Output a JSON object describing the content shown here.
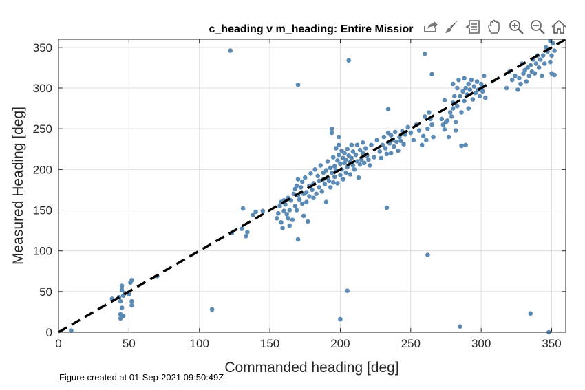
{
  "figure": {
    "footer": "Figure created at 01-Sep-2021 09:50:49Z"
  },
  "toolbar": {
    "icons": [
      "export-icon",
      "brush-icon",
      "data-tip-icon",
      "pan-icon",
      "zoom-in-icon",
      "zoom-out-icon",
      "home-icon"
    ]
  },
  "colors": {
    "points": "#5b8bb5",
    "reference_line": "#000000",
    "grid": "#dcdcdc"
  },
  "chart_data": {
    "type": "scatter",
    "title": "c_heading v m_heading: Entire Missior",
    "xlabel": "Commanded heading [deg]",
    "ylabel": "Measured Heading [deg]",
    "xlim": [
      0,
      360
    ],
    "ylim": [
      0,
      360
    ],
    "xticks": [
      0,
      50,
      100,
      150,
      200,
      250,
      300,
      350
    ],
    "yticks": [
      0,
      50,
      100,
      150,
      200,
      250,
      300,
      350
    ],
    "grid": true,
    "reference_line": {
      "style": "dashed",
      "x": [
        0,
        360
      ],
      "y": [
        0,
        360
      ]
    },
    "points": [
      [
        9,
        2
      ],
      [
        38,
        41
      ],
      [
        43,
        43
      ],
      [
        44,
        38
      ],
      [
        44,
        22
      ],
      [
        44,
        17
      ],
      [
        45,
        52
      ],
      [
        45,
        57
      ],
      [
        45,
        30
      ],
      [
        46,
        45
      ],
      [
        46,
        20
      ],
      [
        47,
        48
      ],
      [
        50,
        47
      ],
      [
        51,
        61
      ],
      [
        52,
        64
      ],
      [
        52,
        38
      ],
      [
        52,
        33
      ],
      [
        70,
        69
      ],
      [
        109,
        28
      ],
      [
        122,
        346
      ],
      [
        123,
        122
      ],
      [
        130,
        127
      ],
      [
        131,
        152
      ],
      [
        133,
        118
      ],
      [
        134,
        123
      ],
      [
        138,
        144
      ],
      [
        140,
        148
      ],
      [
        145,
        149
      ],
      [
        155,
        140
      ],
      [
        156,
        146
      ],
      [
        157,
        155
      ],
      [
        158,
        160
      ],
      [
        158,
        135
      ],
      [
        159,
        128
      ],
      [
        160,
        149
      ],
      [
        160,
        162
      ],
      [
        161,
        157
      ],
      [
        162,
        145
      ],
      [
        163,
        140
      ],
      [
        163,
        165
      ],
      [
        164,
        150
      ],
      [
        164,
        131
      ],
      [
        165,
        162
      ],
      [
        166,
        138
      ],
      [
        167,
        170
      ],
      [
        168,
        176
      ],
      [
        168,
        155
      ],
      [
        169,
        180
      ],
      [
        169,
        150
      ],
      [
        170,
        188
      ],
      [
        170,
        168
      ],
      [
        170,
        114
      ],
      [
        170,
        304
      ],
      [
        171,
        163
      ],
      [
        172,
        178
      ],
      [
        173,
        185
      ],
      [
        173,
        158
      ],
      [
        174,
        143
      ],
      [
        174,
        170
      ],
      [
        175,
        190
      ],
      [
        176,
        172
      ],
      [
        176,
        160
      ],
      [
        177,
        136
      ],
      [
        178,
        180
      ],
      [
        178,
        167
      ],
      [
        179,
        195
      ],
      [
        180,
        175
      ],
      [
        181,
        183
      ],
      [
        181,
        165
      ],
      [
        182,
        200
      ],
      [
        183,
        170
      ],
      [
        184,
        192
      ],
      [
        185,
        186
      ],
      [
        185,
        178
      ],
      [
        186,
        205
      ],
      [
        187,
        173
      ],
      [
        188,
        196
      ],
      [
        188,
        188
      ],
      [
        189,
        182
      ],
      [
        190,
        199
      ],
      [
        190,
        160
      ],
      [
        191,
        210
      ],
      [
        191,
        190
      ],
      [
        192,
        186
      ],
      [
        193,
        202
      ],
      [
        193,
        178
      ],
      [
        194,
        245
      ],
      [
        194,
        250
      ],
      [
        194,
        196
      ],
      [
        195,
        215
      ],
      [
        195,
        184
      ],
      [
        196,
        204
      ],
      [
        196,
        191
      ],
      [
        197,
        226
      ],
      [
        197,
        199
      ],
      [
        198,
        211
      ],
      [
        198,
        183
      ],
      [
        199,
        218
      ],
      [
        199,
        240
      ],
      [
        199,
        230
      ],
      [
        200,
        207
      ],
      [
        200,
        193
      ],
      [
        200,
        16
      ],
      [
        201,
        223
      ],
      [
        201,
        200
      ],
      [
        202,
        214
      ],
      [
        202,
        188
      ],
      [
        203,
        220
      ],
      [
        203,
        208
      ],
      [
        204,
        212
      ],
      [
        204,
        196
      ],
      [
        205,
        225
      ],
      [
        205,
        203
      ],
      [
        205,
        51
      ],
      [
        206,
        217
      ],
      [
        206,
        334
      ],
      [
        207,
        209
      ],
      [
        207,
        194
      ],
      [
        208,
        230
      ],
      [
        208,
        214
      ],
      [
        209,
        222
      ],
      [
        209,
        205
      ],
      [
        210,
        200
      ],
      [
        211,
        218
      ],
      [
        212,
        230
      ],
      [
        212,
        210
      ],
      [
        213,
        190
      ],
      [
        214,
        224
      ],
      [
        214,
        206
      ],
      [
        215,
        212
      ],
      [
        216,
        233
      ],
      [
        216,
        220
      ],
      [
        217,
        208
      ],
      [
        218,
        226
      ],
      [
        219,
        217
      ],
      [
        220,
        212
      ],
      [
        221,
        205
      ],
      [
        222,
        230
      ],
      [
        224,
        215
      ],
      [
        226,
        236
      ],
      [
        228,
        222
      ],
      [
        229,
        214
      ],
      [
        230,
        230
      ],
      [
        231,
        240
      ],
      [
        232,
        226
      ],
      [
        233,
        219
      ],
      [
        233,
        153
      ],
      [
        234,
        274
      ],
      [
        234,
        245
      ],
      [
        235,
        232
      ],
      [
        236,
        242
      ],
      [
        236,
        220
      ],
      [
        237,
        236
      ],
      [
        238,
        228
      ],
      [
        239,
        246
      ],
      [
        240,
        234
      ],
      [
        241,
        223
      ],
      [
        242,
        240
      ],
      [
        243,
        235
      ],
      [
        244,
        247
      ],
      [
        245,
        231
      ],
      [
        246,
        243
      ],
      [
        248,
        252
      ],
      [
        250,
        245
      ],
      [
        252,
        236
      ],
      [
        254,
        255
      ],
      [
        256,
        248
      ],
      [
        258,
        230
      ],
      [
        259,
        241
      ],
      [
        260,
        265
      ],
      [
        260,
        342
      ],
      [
        261,
        236
      ],
      [
        262,
        250
      ],
      [
        262,
        95
      ],
      [
        263,
        270
      ],
      [
        264,
        262
      ],
      [
        265,
        255
      ],
      [
        265,
        317
      ],
      [
        266,
        240
      ],
      [
        272,
        262
      ],
      [
        273,
        255
      ],
      [
        274,
        285
      ],
      [
        274,
        249
      ],
      [
        275,
        258
      ],
      [
        276,
        260
      ],
      [
        277,
        240
      ],
      [
        278,
        270
      ],
      [
        279,
        265
      ],
      [
        280,
        275
      ],
      [
        280,
        305
      ],
      [
        280,
        282
      ],
      [
        281,
        290
      ],
      [
        282,
        258
      ],
      [
        282,
        248
      ],
      [
        283,
        300
      ],
      [
        283,
        278
      ],
      [
        284,
        310
      ],
      [
        285,
        290
      ],
      [
        285,
        7
      ],
      [
        286,
        270
      ],
      [
        286,
        229
      ],
      [
        287,
        296
      ],
      [
        288,
        312
      ],
      [
        288,
        284
      ],
      [
        289,
        300
      ],
      [
        289,
        230
      ],
      [
        290,
        292
      ],
      [
        291,
        305
      ],
      [
        291,
        275
      ],
      [
        292,
        298
      ],
      [
        293,
        310
      ],
      [
        294,
        286
      ],
      [
        295,
        302
      ],
      [
        296,
        294
      ],
      [
        297,
        308
      ],
      [
        298,
        298
      ],
      [
        299,
        290
      ],
      [
        300,
        305
      ],
      [
        300,
        300
      ],
      [
        301,
        296
      ],
      [
        302,
        315
      ],
      [
        303,
        288
      ],
      [
        318,
        300
      ],
      [
        320,
        320
      ],
      [
        322,
        310
      ],
      [
        324,
        315
      ],
      [
        326,
        298
      ],
      [
        327,
        312
      ],
      [
        328,
        305
      ],
      [
        329,
        330
      ],
      [
        330,
        318
      ],
      [
        331,
        322
      ],
      [
        332,
        308
      ],
      [
        333,
        325
      ],
      [
        334,
        315
      ],
      [
        335,
        328
      ],
      [
        335,
        23
      ],
      [
        336,
        320
      ],
      [
        337,
        335
      ],
      [
        338,
        318
      ],
      [
        339,
        330
      ],
      [
        340,
        340
      ],
      [
        341,
        325
      ],
      [
        342,
        335
      ],
      [
        343,
        315
      ],
      [
        344,
        340
      ],
      [
        345,
        330
      ],
      [
        346,
        350
      ],
      [
        347,
        345
      ],
      [
        348,
        0
      ],
      [
        349,
        358
      ],
      [
        349,
        332
      ],
      [
        350,
        318
      ],
      [
        350,
        340
      ],
      [
        351,
        355
      ],
      [
        352,
        346
      ],
      [
        352,
        316
      ]
    ]
  }
}
